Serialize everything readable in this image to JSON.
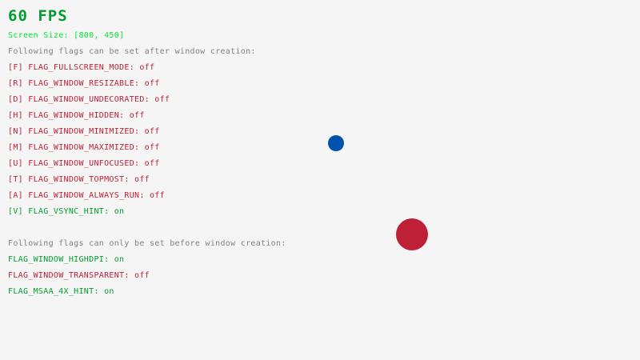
{
  "fps": {
    "label": "60 FPS",
    "color": "#009E2F"
  },
  "screen_size": {
    "label": "Screen Size: [800, 450]",
    "color": "#00E430"
  },
  "colors": {
    "on": "#009E2F",
    "off": "#BE2137",
    "info": "#828282",
    "background": "#F5F5F5"
  },
  "after_creation": {
    "heading": "Following flags can be set after window creation:",
    "flags": [
      {
        "label": "[F] FLAG_FULLSCREEN_MODE: ",
        "state": "off"
      },
      {
        "label": "[R] FLAG_WINDOW_RESIZABLE: ",
        "state": "off"
      },
      {
        "label": "[D] FLAG_WINDOW_UNDECORATED: ",
        "state": "off"
      },
      {
        "label": "[H] FLAG_WINDOW_HIDDEN: ",
        "state": "off"
      },
      {
        "label": "[N] FLAG_WINDOW_MINIMIZED: ",
        "state": "off"
      },
      {
        "label": "[M] FLAG_WINDOW_MAXIMIZED: ",
        "state": "off"
      },
      {
        "label": "[U] FLAG_WINDOW_UNFOCUSED: ",
        "state": "off"
      },
      {
        "label": "[T] FLAG_WINDOW_TOPMOST: ",
        "state": "off"
      },
      {
        "label": "[A] FLAG_WINDOW_ALWAYS_RUN: ",
        "state": "off"
      },
      {
        "label": "[V] FLAG_VSYNC_HINT: ",
        "state": "on"
      }
    ]
  },
  "before_creation": {
    "heading": "Following flags can only be set before window creation:",
    "flags": [
      {
        "label": "FLAG_WINDOW_HIGHDPI: ",
        "state": "on"
      },
      {
        "label": "FLAG_WINDOW_TRANSPARENT: ",
        "state": "off"
      },
      {
        "label": "FLAG_MSAA_4X_HINT: ",
        "state": "on"
      }
    ]
  },
  "balls": [
    {
      "name": "blue-ball",
      "color": "#0052AC"
    },
    {
      "name": "red-ball",
      "color": "#BE2137"
    }
  ]
}
